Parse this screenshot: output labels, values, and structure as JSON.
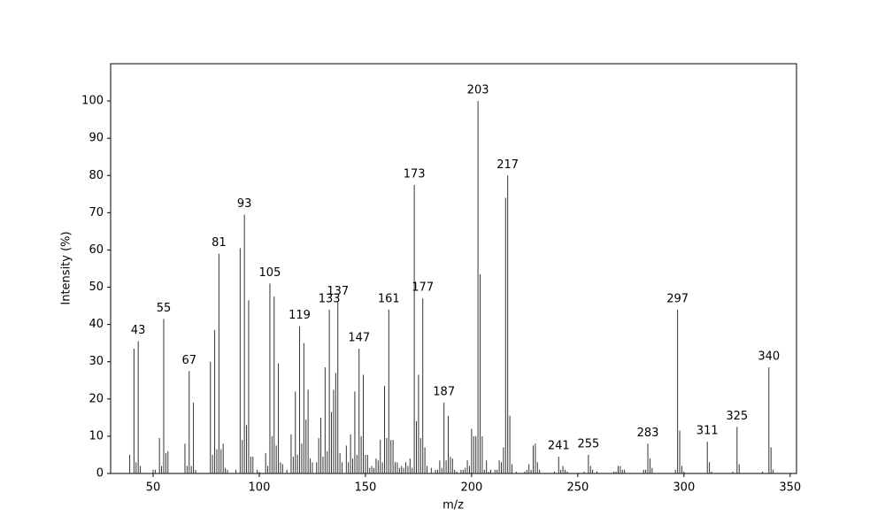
{
  "chart_data": {
    "type": "spectrum",
    "x_label": "m/z",
    "y_label": "Intensity (%)",
    "xlim": [
      30,
      353
    ],
    "ylim": [
      0,
      110
    ],
    "xticks": [
      50,
      100,
      150,
      200,
      250,
      300,
      350
    ],
    "yticks": [
      0,
      10,
      20,
      30,
      40,
      50,
      60,
      70,
      80,
      90,
      100
    ],
    "color": "#333333",
    "x": [
      39,
      41,
      42,
      43,
      44,
      50,
      51,
      53,
      54,
      55,
      56,
      57,
      65,
      66,
      67,
      68,
      69,
      70,
      77,
      78,
      79,
      80,
      81,
      82,
      83,
      84,
      85,
      89,
      91,
      92,
      93,
      94,
      95,
      96,
      97,
      99,
      100,
      103,
      104,
      105,
      106,
      107,
      108,
      109,
      110,
      111,
      113,
      115,
      116,
      117,
      118,
      119,
      120,
      121,
      122,
      123,
      124,
      125,
      127,
      128,
      129,
      130,
      131,
      132,
      133,
      134,
      135,
      136,
      137,
      138,
      139,
      141,
      142,
      143,
      144,
      145,
      146,
      147,
      148,
      149,
      150,
      151,
      152,
      153,
      154,
      155,
      156,
      157,
      158,
      159,
      160,
      161,
      162,
      163,
      164,
      165,
      166,
      167,
      168,
      169,
      170,
      171,
      172,
      173,
      174,
      175,
      176,
      177,
      178,
      179,
      181,
      183,
      184,
      185,
      186,
      187,
      188,
      189,
      190,
      191,
      192,
      193,
      195,
      196,
      197,
      198,
      199,
      200,
      201,
      202,
      203,
      204,
      205,
      206,
      207,
      208,
      209,
      211,
      212,
      213,
      214,
      215,
      216,
      217,
      218,
      219,
      221,
      225,
      226,
      227,
      228,
      229,
      230,
      231,
      232,
      239,
      241,
      242,
      243,
      244,
      245,
      253,
      255,
      256,
      257,
      259,
      267,
      268,
      269,
      270,
      271,
      272,
      281,
      282,
      283,
      284,
      285,
      296,
      297,
      298,
      299,
      300,
      311,
      312,
      313,
      323,
      325,
      326,
      337,
      340,
      341,
      342
    ],
    "values": [
      5,
      33.5,
      3,
      35.5,
      2,
      1,
      1,
      9.5,
      2,
      41.5,
      5.5,
      6,
      8,
      2,
      27.5,
      2,
      19,
      1,
      30,
      5,
      38.5,
      6.5,
      59,
      6.5,
      8,
      1.5,
      1,
      1,
      60.5,
      9,
      69.5,
      13,
      46.5,
      4.5,
      4.5,
      1,
      0.5,
      5.5,
      2,
      51,
      10,
      47.5,
      7.5,
      29.5,
      3,
      2.5,
      1,
      10.5,
      4.5,
      22,
      5,
      39.5,
      8,
      35,
      14.5,
      22.5,
      4,
      3,
      3,
      9.5,
      15,
      4.5,
      28.5,
      6,
      44,
      16.5,
      22.5,
      27,
      46,
      5.5,
      3,
      7.5,
      3,
      10.5,
      4,
      22,
      5,
      33.5,
      10,
      26.5,
      5,
      5,
      1.5,
      2,
      1.5,
      4,
      3.5,
      9,
      3,
      23.5,
      9.5,
      44,
      9,
      9,
      3,
      3,
      1.5,
      2,
      1.5,
      3,
      2,
      4,
      1.5,
      77.5,
      14,
      26.5,
      9.5,
      47,
      7,
      2,
      1.5,
      1,
      1,
      3.5,
      1.5,
      19,
      3.5,
      15.5,
      4.5,
      4,
      1,
      0.5,
      1,
      1,
      1.5,
      3.5,
      2,
      12,
      10,
      10,
      100,
      53.5,
      10,
      1,
      3.5,
      0.5,
      1,
      1,
      1,
      3.5,
      3,
      7,
      74,
      80,
      15.5,
      2.5,
      0.5,
      0.5,
      1,
      2.5,
      1,
      7.5,
      8,
      3,
      1,
      0.5,
      4.5,
      1,
      2,
      1,
      0.5,
      0.5,
      5,
      2,
      1,
      0.5,
      0.5,
      0.5,
      2,
      2,
      1,
      1,
      1,
      1,
      8,
      4,
      1.5,
      1,
      44,
      11.5,
      2,
      0.5,
      8.5,
      3,
      0.5,
      0.5,
      12.5,
      2.5,
      0.5,
      28.5,
      7,
      1
    ],
    "peak_labels": [
      43,
      55,
      67,
      81,
      93,
      105,
      119,
      133,
      137,
      147,
      161,
      173,
      177,
      187,
      203,
      217,
      241,
      255,
      283,
      297,
      311,
      325,
      340
    ]
  }
}
